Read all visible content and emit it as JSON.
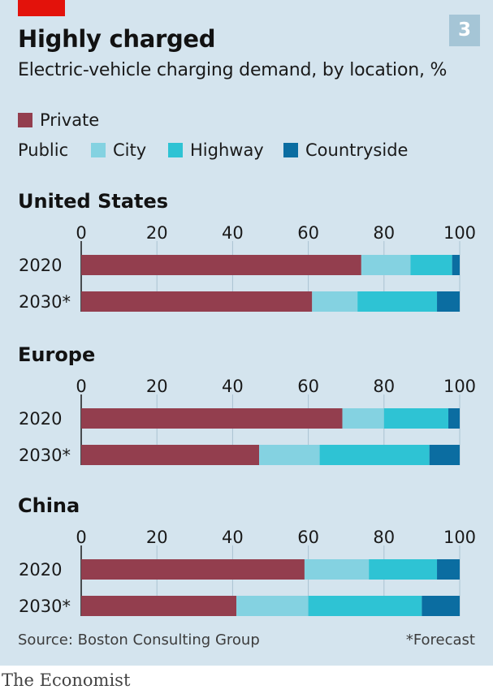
{
  "header": {
    "title": "Highly charged",
    "chart_number": "3",
    "subtitle": "Electric-vehicle charging demand, by location, %"
  },
  "legend": {
    "private_label": "Private",
    "public_label": "Public",
    "city_label": "City",
    "highway_label": "Highway",
    "countryside_label": "Countryside"
  },
  "colors": {
    "private": "#933e4e",
    "city": "#84d2e1",
    "highway": "#2ec3d4",
    "countryside": "#0b6da1",
    "background": "#d4e4ee",
    "accent": "#e3120b"
  },
  "chart_data": [
    {
      "type": "bar",
      "orientation": "horizontal",
      "stacked": true,
      "title": "United States",
      "categories": [
        "2020",
        "2030*"
      ],
      "xlim": [
        0,
        100
      ],
      "xticks": [
        "0",
        "20",
        "40",
        "60",
        "80",
        "100"
      ],
      "series": [
        {
          "name": "Private",
          "values": [
            74,
            61
          ]
        },
        {
          "name": "City",
          "values": [
            13,
            12
          ]
        },
        {
          "name": "Highway",
          "values": [
            11,
            21
          ]
        },
        {
          "name": "Countryside",
          "values": [
            2,
            6
          ]
        }
      ]
    },
    {
      "type": "bar",
      "orientation": "horizontal",
      "stacked": true,
      "title": "Europe",
      "categories": [
        "2020",
        "2030*"
      ],
      "xlim": [
        0,
        100
      ],
      "xticks": [
        "0",
        "20",
        "40",
        "60",
        "80",
        "100"
      ],
      "series": [
        {
          "name": "Private",
          "values": [
            69,
            47
          ]
        },
        {
          "name": "City",
          "values": [
            11,
            16
          ]
        },
        {
          "name": "Highway",
          "values": [
            17,
            29
          ]
        },
        {
          "name": "Countryside",
          "values": [
            3,
            8
          ]
        }
      ]
    },
    {
      "type": "bar",
      "orientation": "horizontal",
      "stacked": true,
      "title": "China",
      "categories": [
        "2020",
        "2030*"
      ],
      "xlim": [
        0,
        100
      ],
      "xticks": [
        "0",
        "20",
        "40",
        "60",
        "80",
        "100"
      ],
      "series": [
        {
          "name": "Private",
          "values": [
            59,
            41
          ]
        },
        {
          "name": "City",
          "values": [
            17,
            19
          ]
        },
        {
          "name": "Highway",
          "values": [
            18,
            30
          ]
        },
        {
          "name": "Countryside",
          "values": [
            6,
            10
          ]
        }
      ]
    }
  ],
  "footer": {
    "source": "Source: Boston Consulting Group",
    "note": "*Forecast",
    "brand": "The Economist"
  }
}
